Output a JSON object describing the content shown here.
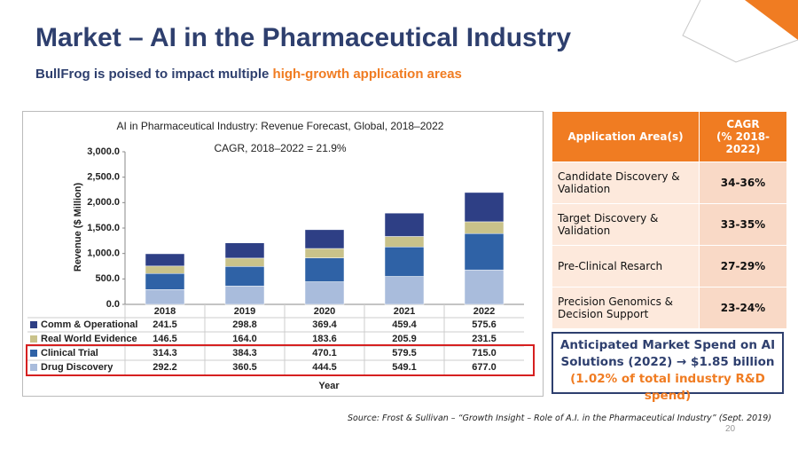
{
  "header": {
    "title": "Market – AI in the Pharmaceutical Industry",
    "subtitle_lead": "BullFrog is poised to impact multiple",
    "subtitle_highlight": "high-growth application areas"
  },
  "chart_data": {
    "type": "stacked-bar",
    "title": "AI in Pharmaceutical Industry: Revenue Forecast, Global, 2018–2022",
    "subtitle": "CAGR, 2018–2022 = 21.9%",
    "y_label": "Revenue ($ Million)",
    "x_label": "Year",
    "categories": [
      "2018",
      "2019",
      "2020",
      "2021",
      "2022"
    ],
    "series": [
      {
        "name": "Comm & Operational",
        "color": "#2e3f85",
        "values": [
          241.5,
          298.8,
          369.4,
          459.4,
          575.6
        ],
        "value_labels": [
          "241.5",
          "298.8",
          "369.4",
          "459.4",
          "575.6"
        ]
      },
      {
        "name": "Real World Evidence",
        "color": "#c9c28a",
        "values": [
          146.5,
          164.0,
          183.6,
          205.9,
          231.5
        ],
        "value_labels": [
          "146.5",
          "164.0",
          "183.6",
          "205.9",
          "231.5"
        ]
      },
      {
        "name": "Clinical Trial",
        "color": "#2f62a6",
        "values": [
          314.3,
          384.3,
          470.1,
          579.5,
          715.0
        ],
        "value_labels": [
          "314.3",
          "384.3",
          "470.1",
          "579.5",
          "715.0"
        ]
      },
      {
        "name": "Drug Discovery",
        "color": "#a9bcdc",
        "values": [
          292.2,
          360.5,
          444.5,
          549.1,
          677.0
        ],
        "value_labels": [
          "292.2",
          "360.5",
          "444.5",
          "549.1",
          "677.0"
        ]
      }
    ],
    "ylim": [
      0,
      3000
    ],
    "yticks": [
      {
        "value": 0,
        "label": "0.0"
      },
      {
        "value": 500,
        "label": "500.0"
      },
      {
        "value": 1000,
        "label": "1,000.0"
      },
      {
        "value": 1500,
        "label": "1,500.0"
      },
      {
        "value": 2000,
        "label": "2,000.0"
      },
      {
        "value": 2500,
        "label": "2,500.0"
      },
      {
        "value": 3000,
        "label": "3,000.0"
      }
    ],
    "grid": false
  },
  "table": {
    "header": [
      "Application Area(s)",
      "CAGR\n(% 2018-2022)"
    ],
    "rows": [
      [
        "Candidate Discovery & Validation",
        "34-36%"
      ],
      [
        "Target Discovery & Validation",
        "33-35%"
      ],
      [
        "Pre-Clinical Resarch",
        "27-29%"
      ],
      [
        "Precision Genomics & Decision Support",
        "23-24%"
      ]
    ]
  },
  "callout": {
    "line1": "Anticipated Market Spend on AI Solutions (2022) → $1.85 billion",
    "line2": "(1.02% of total industry R&D spend)"
  },
  "footer": {
    "source": "Source: Frost & Sullivan – “Growth Insight – Role of A.I. in the Pharmaceutical Industry” (Sept. 2019)",
    "page": "20"
  }
}
